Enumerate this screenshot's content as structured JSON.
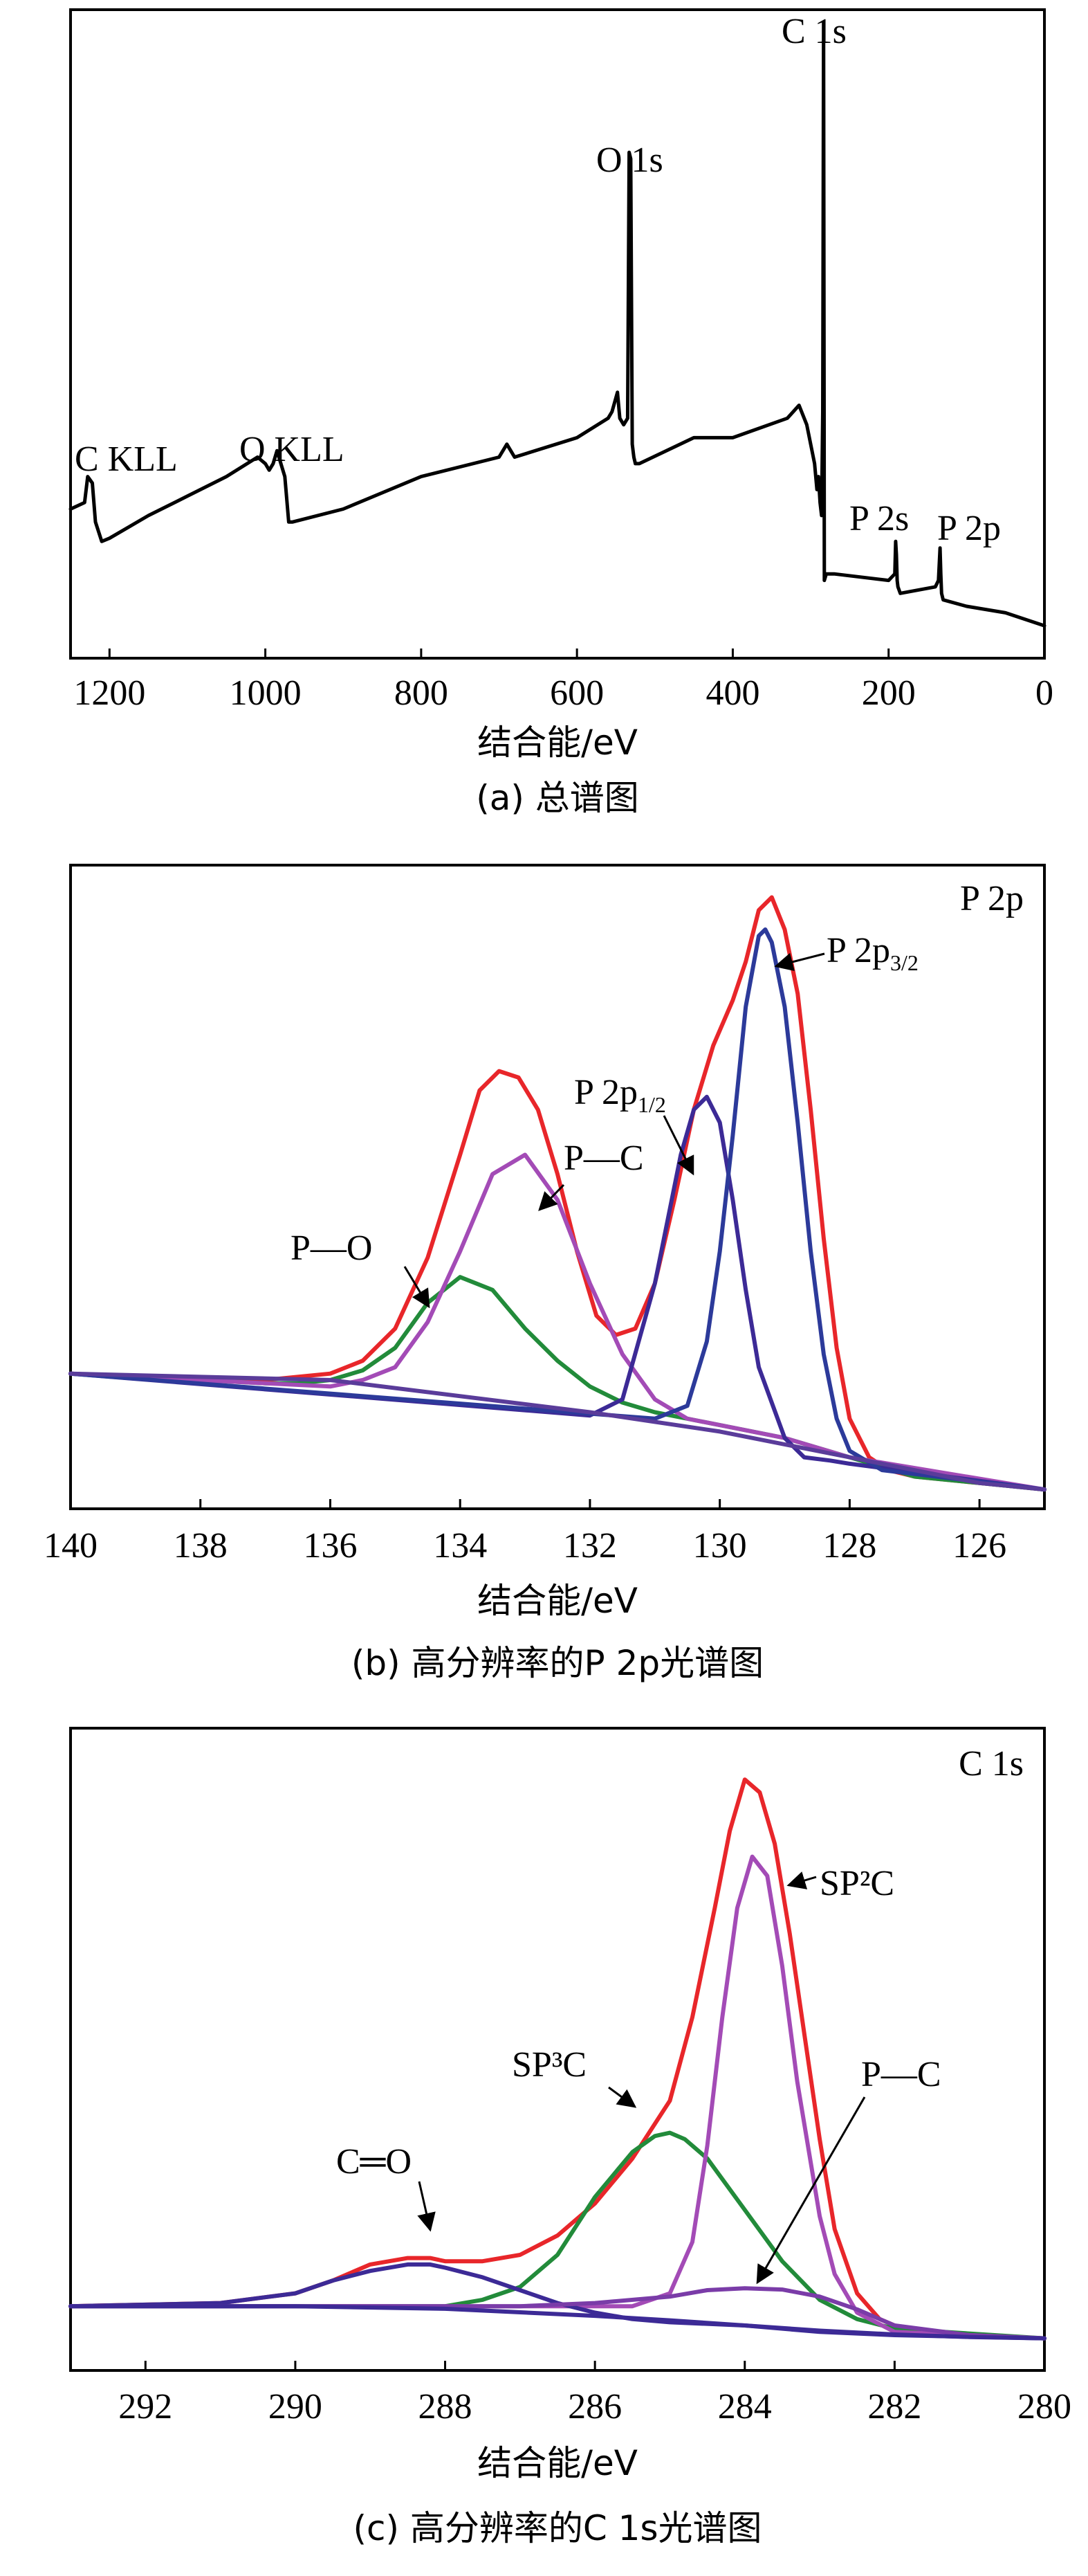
{
  "chart_data": [
    {
      "type": "line",
      "caption": "(a) 总谱图",
      "xlabel": "结合能/eV",
      "ylabel": "",
      "xlim": [
        1250,
        0
      ],
      "ylim": [
        0,
        100
      ],
      "x_ticks": [
        "1200",
        "1000",
        "800",
        "600",
        "400",
        "200",
        "0"
      ],
      "x_tick_values": [
        1200,
        1000,
        800,
        600,
        400,
        200,
        0
      ],
      "grid": false,
      "colors": {
        "series": "#000000"
      },
      "series": [
        {
          "x": [
            1250,
            1232,
            1228,
            1222,
            1218,
            1210,
            1200,
            1150,
            1100,
            1050,
            1010,
            1000,
            995,
            990,
            985,
            980,
            975,
            970,
            965,
            900,
            800,
            700,
            690,
            680,
            600,
            560,
            555,
            548,
            545,
            540,
            535,
            533,
            531,
            529,
            527,
            525,
            520,
            450,
            400,
            330,
            315,
            305,
            295,
            292,
            290,
            288,
            286,
            284.5,
            283.5,
            282.5,
            280,
            270,
            200,
            192,
            191,
            190,
            189,
            188,
            185,
            140,
            136,
            134,
            133,
            132,
            130,
            100,
            50,
            0
          ],
          "y": [
            23,
            24,
            28,
            27,
            21,
            18,
            18.5,
            22,
            25,
            28,
            31,
            30,
            29,
            30,
            32,
            30,
            28,
            21,
            21,
            23,
            28,
            31,
            33,
            31,
            34,
            37,
            38,
            41,
            37,
            36,
            37,
            78,
            77,
            33,
            31,
            30,
            30,
            34,
            34,
            37,
            39,
            36,
            30,
            26,
            28,
            24,
            22,
            38,
            98,
            12,
            13,
            13,
            12,
            13,
            18,
            16,
            12,
            11,
            10,
            11,
            12,
            17,
            13,
            10,
            9,
            8,
            7,
            5
          ]
        }
      ],
      "annotations": [
        "C 1s",
        "O 1s",
        "C KLL",
        "O KLL",
        "P 2s",
        "P 2p"
      ]
    },
    {
      "type": "line",
      "caption": "(b) 高分辨率的P 2p光谱图",
      "xlabel": "结合能/eV",
      "ylabel": "",
      "xlim": [
        140,
        125
      ],
      "ylim": [
        0,
        100
      ],
      "x_ticks": [
        "140",
        "138",
        "136",
        "134",
        "132",
        "130",
        "128",
        "126"
      ],
      "x_tick_values": [
        140,
        138,
        136,
        134,
        132,
        130,
        128,
        126
      ],
      "grid": false,
      "corner_label": "P 2p",
      "colors": {
        "envelope": "#e8262a",
        "p_o": "#228b3a",
        "p_c": "#a34bb6",
        "p2p12": "#3c2a96",
        "p2p32": "#2c3a9a",
        "background": "#5a3c9a"
      },
      "series": [
        {
          "color_key": "envelope",
          "x": [
            140,
            138,
            137,
            136.5,
            136,
            135.5,
            135,
            134.5,
            134,
            133.7,
            133.4,
            133.1,
            132.8,
            132.5,
            132.2,
            131.9,
            131.6,
            131.3,
            131,
            130.7,
            130.4,
            130.1,
            129.8,
            129.6,
            129.4,
            129.2,
            129,
            128.8,
            128.6,
            128.4,
            128.2,
            128,
            127.7,
            127.4,
            127,
            126.5,
            126,
            125.5,
            125
          ],
          "y": [
            21,
            20,
            20,
            20.5,
            21,
            23,
            28,
            39,
            55,
            65,
            68,
            67,
            62,
            52,
            40,
            30,
            27,
            28,
            35,
            48,
            62,
            72,
            79,
            85,
            93,
            95,
            90,
            80,
            62,
            42,
            25,
            14,
            8,
            6,
            5,
            4.5,
            4,
            3.5,
            3
          ]
        },
        {
          "name": "P—O",
          "color_key": "p_o",
          "x": [
            140,
            137,
            136.5,
            136,
            135.5,
            135,
            134.5,
            134,
            133.5,
            133,
            132.5,
            132,
            131.5,
            131,
            130.5,
            130,
            129,
            128,
            127,
            125
          ],
          "y": [
            21,
            19.5,
            19.5,
            20,
            21.5,
            25,
            32,
            36,
            34,
            28,
            23,
            19,
            16.5,
            15,
            14,
            13,
            11,
            8,
            5,
            3
          ]
        },
        {
          "name": "P—C",
          "color_key": "p_c",
          "x": [
            140,
            136,
            135.5,
            135,
            134.5,
            134,
            133.5,
            133,
            132.5,
            132,
            131.5,
            131,
            130.5,
            130,
            129,
            128,
            125
          ],
          "y": [
            21,
            19,
            20,
            22,
            29,
            40,
            52,
            55,
            48,
            35,
            24,
            17,
            14,
            13,
            11,
            8,
            3
          ]
        },
        {
          "name": "P 2p1/2",
          "color_key": "p2p12",
          "x": [
            140,
            132,
            131.5,
            131,
            130.6,
            130.4,
            130.2,
            130,
            129.8,
            129.6,
            129.4,
            129,
            128.7,
            128.3,
            128,
            125
          ],
          "y": [
            21,
            14.5,
            17,
            35,
            55,
            62,
            64,
            60,
            48,
            34,
            22,
            11,
            8,
            7.5,
            7,
            3
          ]
        },
        {
          "name": "P 2p3/2",
          "color_key": "p2p32",
          "x": [
            140,
            131,
            130.5,
            130.2,
            130,
            129.8,
            129.6,
            129.4,
            129.3,
            129.2,
            129,
            128.8,
            128.6,
            128.4,
            128.2,
            128,
            127.5,
            125
          ],
          "y": [
            21,
            14,
            16,
            26,
            40,
            58,
            78,
            89,
            90,
            88,
            78,
            60,
            40,
            24,
            14,
            9,
            6,
            3
          ]
        },
        {
          "name": "background",
          "color_key": "background",
          "x": [
            140,
            136,
            132,
            130,
            128,
            126,
            125
          ],
          "y": [
            21,
            20,
            15,
            12,
            8,
            4,
            3
          ]
        }
      ],
      "annotations": [
        "P—O",
        "P—C",
        "P 2p",
        "1/2",
        "3/2"
      ]
    },
    {
      "type": "line",
      "caption": "(c) 高分辨率的C 1s光谱图",
      "xlabel": "结合能/eV",
      "ylabel": "",
      "xlim": [
        293,
        280
      ],
      "ylim": [
        0,
        100
      ],
      "x_ticks": [
        "292",
        "290",
        "288",
        "286",
        "284",
        "282",
        "280"
      ],
      "x_tick_values": [
        292,
        290,
        288,
        286,
        284,
        282,
        280
      ],
      "grid": false,
      "corner_label": "C 1s",
      "colors": {
        "envelope": "#e8262a",
        "sp3c": "#228b3a",
        "sp2c": "#a34bb6",
        "c_o": "#3c2a96",
        "p_c": "#7a3ca8",
        "background": "#3c2a96"
      },
      "series": [
        {
          "color_key": "envelope",
          "x": [
            293,
            291,
            290,
            289.5,
            289,
            288.5,
            288.2,
            288,
            287.5,
            287,
            286.5,
            286,
            285.5,
            285,
            284.7,
            284.4,
            284.2,
            284,
            283.8,
            283.6,
            283.4,
            283.2,
            283,
            282.8,
            282.5,
            282.2,
            281.8,
            281,
            280
          ],
          "y": [
            10,
            10.5,
            12,
            14,
            16.5,
            17.5,
            17.5,
            17,
            17,
            18,
            21,
            26,
            33,
            42,
            55,
            72,
            84,
            92,
            90,
            82,
            68,
            52,
            36,
            22,
            12,
            8,
            6,
            5.5,
            5
          ]
        },
        {
          "name": "SP3C",
          "color_key": "sp3c",
          "x": [
            293,
            288,
            287.5,
            287,
            286.5,
            286,
            285.5,
            285.2,
            285,
            284.8,
            284.5,
            284,
            283.5,
            283,
            282.5,
            282,
            280
          ],
          "y": [
            10,
            10,
            11,
            13,
            18,
            27,
            34,
            36.5,
            37,
            36,
            33,
            25,
            17,
            11,
            8,
            6.5,
            5
          ]
        },
        {
          "name": "SP2C",
          "color_key": "sp2c",
          "x": [
            293,
            285.5,
            285,
            284.7,
            284.5,
            284.3,
            284.1,
            283.9,
            283.7,
            283.5,
            283.3,
            283,
            282.8,
            282.5,
            282,
            280
          ],
          "y": [
            10,
            10,
            12,
            20,
            35,
            55,
            72,
            80,
            77,
            63,
            45,
            24,
            15,
            9,
            6,
            5
          ]
        },
        {
          "name": "C═O",
          "color_key": "c_o",
          "x": [
            293,
            291,
            290,
            289.5,
            289,
            288.5,
            288.2,
            288,
            287.5,
            287,
            286.5,
            286,
            285.5,
            285,
            284,
            283,
            282,
            280
          ],
          "y": [
            10,
            10.5,
            12,
            14,
            15.5,
            16.5,
            16.5,
            16,
            14.5,
            12.5,
            10.5,
            9,
            8,
            7.5,
            7,
            6,
            5.5,
            5
          ]
        },
        {
          "name": "P—C",
          "color_key": "p_c",
          "x": [
            293,
            287,
            286,
            285,
            284.5,
            284,
            283.5,
            283,
            282.5,
            282,
            281,
            280
          ],
          "y": [
            10,
            10,
            10.5,
            11.5,
            12.5,
            12.8,
            12.6,
            11.5,
            9.5,
            7,
            5.5,
            5
          ]
        },
        {
          "name": "background",
          "color_key": "background",
          "x": [
            293,
            290,
            288,
            286,
            285,
            284,
            283,
            282,
            281,
            280
          ],
          "y": [
            10,
            10,
            9.6,
            8.5,
            7.8,
            7,
            6.2,
            5.6,
            5.2,
            5
          ]
        }
      ],
      "annotations": [
        "C═O",
        "SP³C",
        "SP²C",
        "P—C"
      ]
    }
  ],
  "panels": [
    {
      "caption": "(a) 总谱图",
      "xlabel": "结合能/eV",
      "ticks": [
        "1200",
        "1000",
        "800",
        "600",
        "400",
        "200",
        "0"
      ],
      "labels": {
        "c1s": "C 1s",
        "o1s": "O 1s",
        "ckll": "C KLL",
        "okll": "O KLL",
        "p2s": "P 2s",
        "p2p": "P 2p"
      }
    },
    {
      "caption": "(b) 高分辨率的P 2p光谱图",
      "xlabel": "结合能/eV",
      "ticks": [
        "140",
        "138",
        "136",
        "134",
        "132",
        "130",
        "128",
        "126"
      ],
      "labels": {
        "corner": "P 2p",
        "po": "P—O",
        "pc": "P—C",
        "p12_main": "P 2p",
        "p12_sub": "1/2",
        "p32_main": "P 2p",
        "p32_sub": "3/2"
      }
    },
    {
      "caption": "(c) 高分辨率的C 1s光谱图",
      "xlabel": "结合能/eV",
      "ticks": [
        "292",
        "290",
        "288",
        "286",
        "284",
        "282",
        "280"
      ],
      "labels": {
        "corner": "C 1s",
        "co": "C═O",
        "sp3c": "SP³C",
        "sp2c": "SP²C",
        "pc": "P—C"
      }
    }
  ]
}
